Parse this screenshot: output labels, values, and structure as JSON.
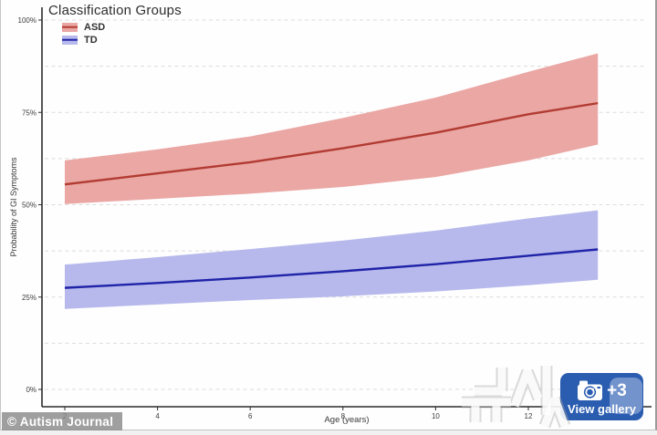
{
  "photo": {
    "credit": "© Autism Journal",
    "watermark_text": "뉴시스"
  },
  "gallery_button": {
    "more_count": "+3",
    "label": "View gallery",
    "color": "#2a5cb0",
    "icon": "camera-icon"
  },
  "chart_data": {
    "type": "line",
    "title": "Classification Groups",
    "xlabel": "Age (years)",
    "ylabel": "Probability of GI Symptoms",
    "legend": {
      "title": "Classification Groups",
      "position": "top-left"
    },
    "grid": {
      "orientation": "horizontal",
      "step_percent": 12.5,
      "style": "dashed",
      "color": "#dcdcdc"
    },
    "x_domain": [
      1.5,
      14.7
    ],
    "y_domain": [
      0,
      100
    ],
    "x_ticks": [
      2,
      4,
      6,
      8,
      10,
      12
    ],
    "y_ticks": [
      {
        "value": 0,
        "label": "0%"
      },
      {
        "value": 25,
        "label": "25%"
      },
      {
        "value": 50,
        "label": "50%"
      },
      {
        "value": 75,
        "label": "75%"
      },
      {
        "value": 100,
        "label": "100%"
      }
    ],
    "series": [
      {
        "name": "ASD",
        "line_color": "#b23b32",
        "band_color": "#eaa7a4",
        "x": [
          2,
          4,
          6,
          8,
          10,
          12,
          13.5
        ],
        "y": [
          55.5,
          58.5,
          61.5,
          65.3,
          69.5,
          74.5,
          77.5
        ],
        "ci_high": [
          62,
          65,
          68.5,
          73.5,
          79,
          86,
          91
        ],
        "ci_low": [
          50.2,
          51.6,
          53,
          54.8,
          57.5,
          62,
          66.3
        ]
      },
      {
        "name": "TD",
        "line_color": "#1f23a8",
        "band_color": "#b7b9ec",
        "x": [
          2,
          4,
          6,
          8,
          10,
          12,
          13.5
        ],
        "y": [
          27.5,
          28.8,
          30.3,
          32,
          33.9,
          36.2,
          37.9
        ],
        "ci_high": [
          33.8,
          35.8,
          38,
          40.3,
          43,
          46.3,
          48.5
        ],
        "ci_low": [
          21.8,
          23,
          24.2,
          25.2,
          26.5,
          28.2,
          29.7
        ]
      }
    ]
  }
}
